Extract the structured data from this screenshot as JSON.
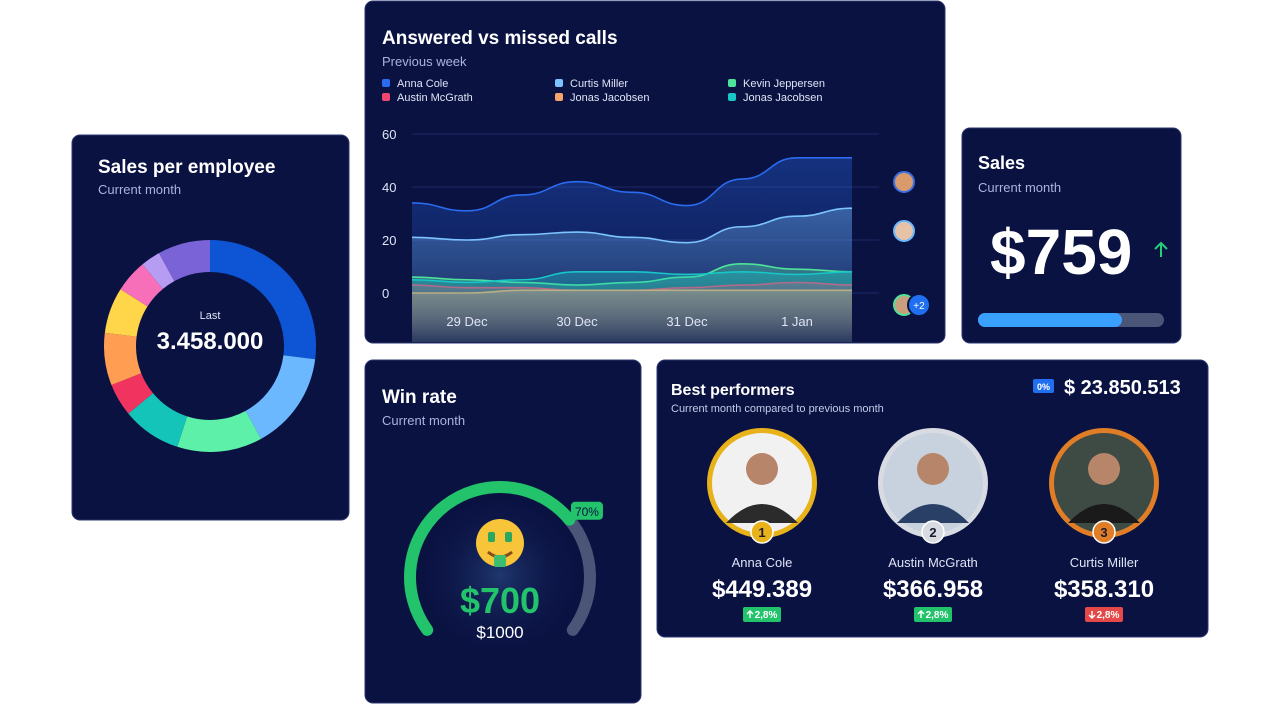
{
  "chart_data": [
    {
      "type": "pie",
      "title": "Sales per employee",
      "subtitle": "Current month",
      "center_label": "Last",
      "center_value": "3.458.000",
      "values": [
        27,
        15,
        13,
        9,
        5,
        8,
        7,
        5,
        3,
        8
      ],
      "colors": [
        "#0d55d4",
        "#6cb8ff",
        "#5cf0a8",
        "#14c4b8",
        "#f0345f",
        "#ff9d52",
        "#ffd54a",
        "#f76fb8",
        "#b69cf2",
        "#7a63d6"
      ]
    },
    {
      "type": "area",
      "title": "Answered vs missed calls",
      "subtitle": "Previous week",
      "categories": [
        null,
        "29 Dec",
        null,
        "30 Dec",
        null,
        "31 Dec",
        null,
        "1 Jan",
        null
      ],
      "series": [
        {
          "name": "Anna Cole",
          "color": "#2a6bef",
          "values": [
            34,
            31,
            37,
            42,
            38,
            33,
            43,
            51,
            51
          ]
        },
        {
          "name": "Curtis Miller",
          "color": "#7cc4ff",
          "values": [
            21,
            20,
            22,
            23,
            21,
            19,
            25,
            29,
            32
          ]
        },
        {
          "name": "Kevin Jeppersen",
          "color": "#4ee39a",
          "values": [
            6,
            5,
            4,
            3,
            4,
            6,
            11,
            9,
            8
          ]
        },
        {
          "name": "Austin McGrath",
          "color": "#f0456f",
          "values": [
            3,
            2,
            2,
            1,
            1,
            2,
            3,
            4,
            3
          ]
        },
        {
          "name": "Jonas Jacobsen",
          "color": "#f5a56b",
          "values": [
            0,
            0,
            1,
            1,
            1,
            1,
            1,
            1,
            1
          ]
        },
        {
          "name": "Jonas Jacobsen",
          "color": "#17c6c6",
          "values": [
            5,
            4,
            5,
            8,
            8,
            7,
            8,
            7,
            8
          ]
        }
      ],
      "ylim": [
        0,
        60
      ],
      "yticks": [
        0,
        20,
        40,
        60
      ],
      "grid": true,
      "more_avatars": "+2"
    },
    {
      "type": "gauge",
      "title": "Win rate",
      "subtitle": "Current month",
      "values": [
        70
      ],
      "value_labels": [
        "70%"
      ],
      "ylim": [
        0,
        100
      ],
      "color": "#22c36b",
      "amount": "$700",
      "target": "$1000"
    }
  ],
  "sales_card": {
    "title": "Sales",
    "subtitle": "Current month",
    "amount": "$759"
  },
  "best_performers": {
    "title": "Best performers",
    "subtitle": "Current month compared to previous month",
    "badge": "0%",
    "total": "$ 23.850.513",
    "performers": [
      {
        "rank": 1,
        "name": "Anna Cole",
        "amount": "$449.389",
        "change": "2,8%",
        "direction": "up"
      },
      {
        "rank": 2,
        "name": "Austin McGrath",
        "amount": "$366.958",
        "change": "2,8%",
        "direction": "up"
      },
      {
        "rank": 3,
        "name": "Curtis Miller",
        "amount": "$358.310",
        "change": "2,8%",
        "direction": "down"
      }
    ]
  }
}
